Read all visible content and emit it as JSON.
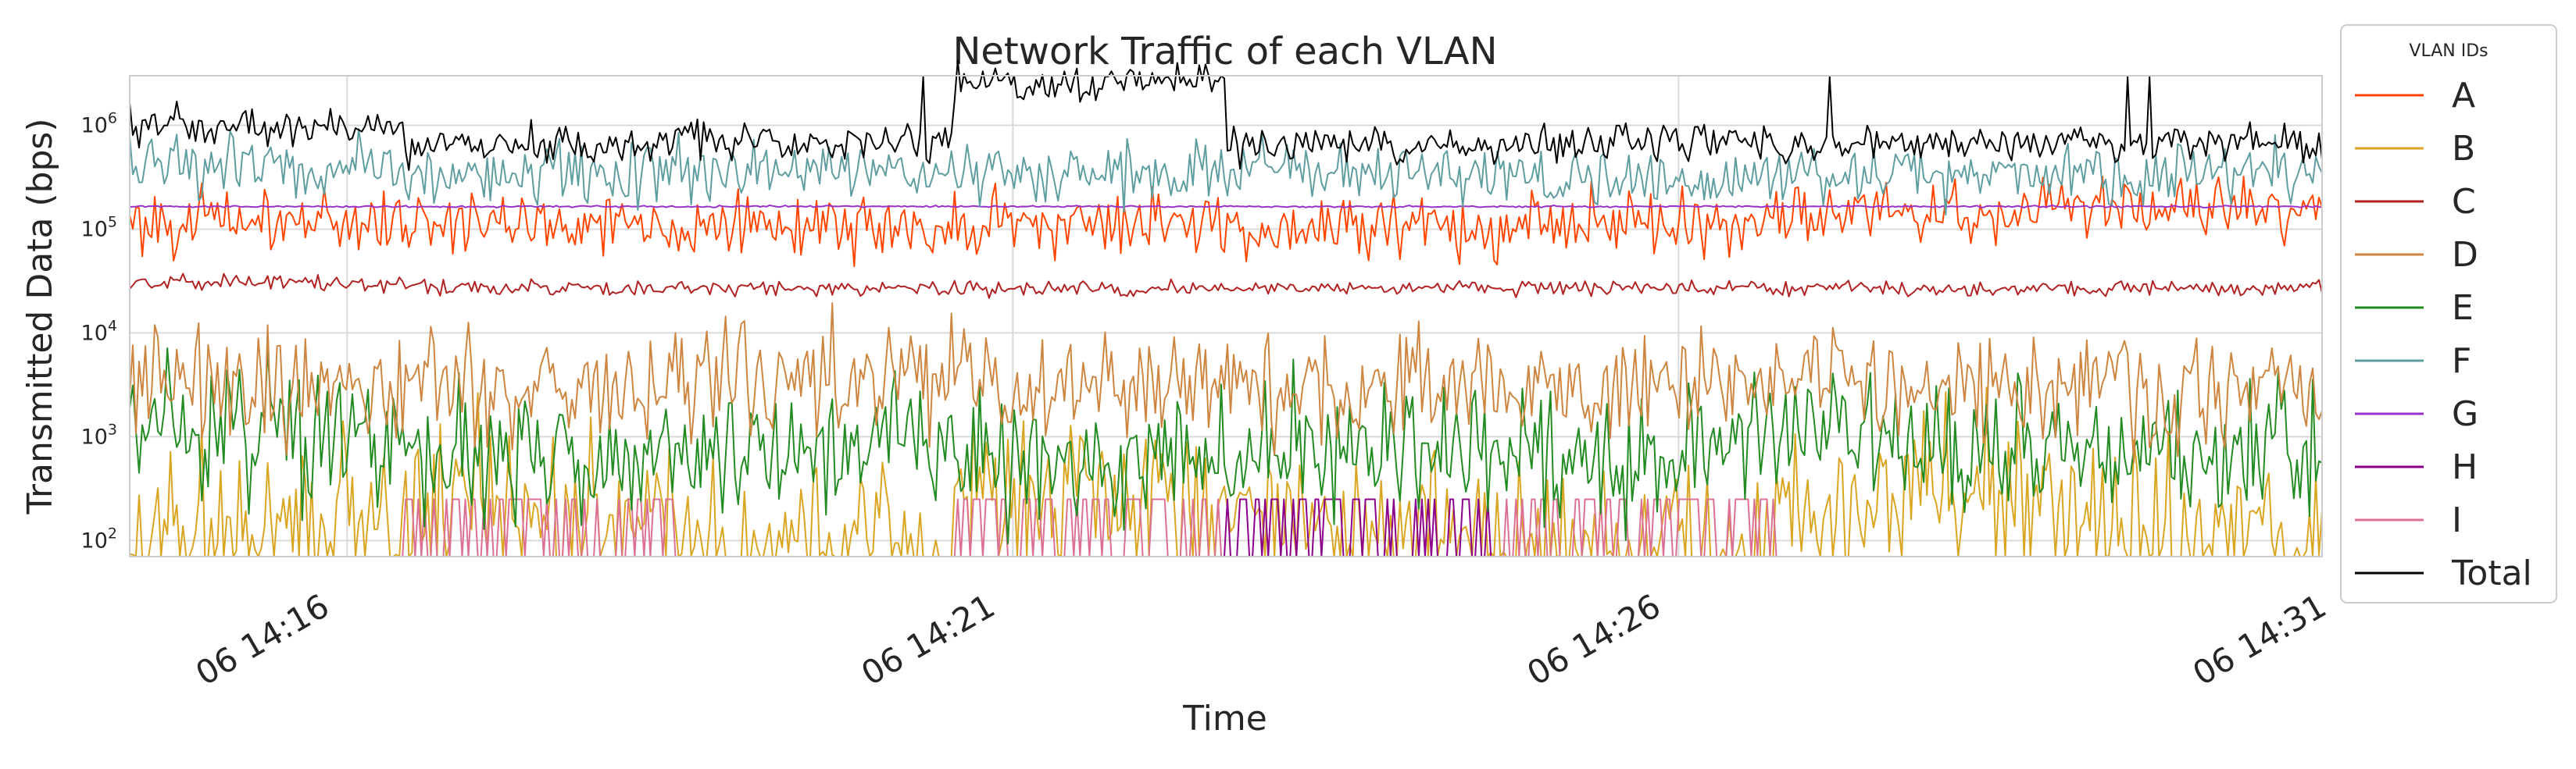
{
  "chart_data": {
    "type": "line",
    "title": "Network Traffic of each VLAN",
    "xlabel": "Time",
    "ylabel": "Transmitted Data (bps)",
    "yscale": "log",
    "ylim": [
      70,
      3000000
    ],
    "yticks": [
      {
        "base": "10",
        "exp": "2",
        "value": 100
      },
      {
        "base": "10",
        "exp": "3",
        "value": 1000
      },
      {
        "base": "10",
        "exp": "4",
        "value": 10000
      },
      {
        "base": "10",
        "exp": "5",
        "value": 100000
      },
      {
        "base": "10",
        "exp": "6",
        "value": 1000000
      }
    ],
    "xlim": [
      "14:14:52",
      "14:31:20"
    ],
    "xticks": [
      {
        "label": "06 14:16",
        "time": "14:16:30"
      },
      {
        "label": "06 14:21",
        "time": "14:21:30"
      },
      {
        "label": "06 14:26",
        "time": "14:26:30"
      },
      {
        "label": "06 14:31",
        "time": "14:31:30"
      }
    ],
    "grid": true,
    "legend": {
      "title": "VLAN IDs",
      "placement": "outside-right"
    },
    "series": [
      {
        "name": "A",
        "color": "#ff4500",
        "level": 110000,
        "spread": 0.1,
        "values": [
          120000,
          115000,
          105000,
          112000,
          108000,
          118000,
          150000,
          160000
        ]
      },
      {
        "name": "B",
        "color": "#daa520",
        "level": 150,
        "spread": 0.28,
        "values": [
          120,
          200,
          90,
          300,
          150,
          80,
          250,
          130
        ]
      },
      {
        "name": "C",
        "color": "#b22222",
        "level": 27000,
        "spread": 0.025,
        "values": [
          30000,
          27000,
          27000,
          26500,
          27000,
          27000,
          26500,
          27000
        ]
      },
      {
        "name": "D",
        "color": "#cd853f",
        "level": 3000,
        "spread": 0.18,
        "values": [
          3000,
          2800,
          3500,
          3000,
          3200,
          2700,
          3300,
          3000
        ]
      },
      {
        "name": "E",
        "color": "#228b22",
        "level": 800,
        "spread": 0.22,
        "values": [
          1000,
          700,
          900,
          600,
          800,
          700,
          900,
          800
        ]
      },
      {
        "name": "F",
        "color": "#5f9ea0",
        "level": 350000,
        "spread": 0.1,
        "values": [
          400000,
          350000,
          380000,
          330000,
          350000,
          320000,
          340000,
          360000
        ]
      },
      {
        "name": "G",
        "color": "#9932cc",
        "level": 165000,
        "spread": 0.003,
        "values": [
          165000,
          165000,
          165000,
          165000,
          165000,
          165000,
          165000,
          165000
        ]
      },
      {
        "name": "H",
        "color": "#8b008b",
        "level": 70,
        "spread": 0.0,
        "values": [
          70,
          70,
          70,
          70,
          250,
          70,
          70,
          70
        ]
      },
      {
        "name": "I",
        "color": "#db7093",
        "level": 70,
        "spread": 0.0,
        "values": [
          70,
          250,
          70,
          250,
          70,
          250,
          70,
          70
        ]
      },
      {
        "name": "Total",
        "color": "#000000",
        "level": 650000,
        "spread": 0.06,
        "values": [
          1000000,
          650000,
          700000,
          2500000,
          650000,
          700000,
          650000,
          700000
        ]
      }
    ]
  }
}
